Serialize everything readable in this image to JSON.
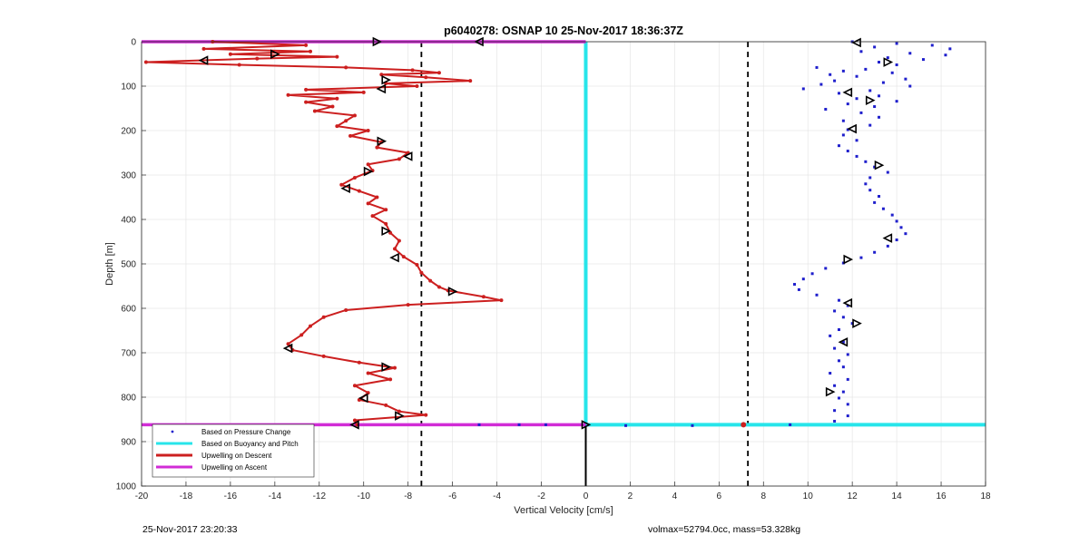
{
  "chart_data": {
    "type": "scatter",
    "title": "p6040278: OSNAP 10 25-Nov-2017 18:36:37Z",
    "xlabel": "Vertical Velocity [cm/s]",
    "ylabel": "Depth [m]",
    "xlim": [
      -20,
      18
    ],
    "ylim": [
      0,
      1000
    ],
    "y_reversed": true,
    "x_ticks": [
      -20,
      -18,
      -16,
      -14,
      -12,
      -10,
      -8,
      -6,
      -4,
      -2,
      0,
      2,
      4,
      6,
      8,
      10,
      12,
      14,
      16,
      18
    ],
    "y_ticks": [
      0,
      100,
      200,
      300,
      400,
      500,
      600,
      700,
      800,
      900,
      1000
    ],
    "grid": true,
    "legend_position": "bottom-left",
    "legend": [
      "Based on Pressure Change",
      "Based on Buoyancy and Pitch",
      "Upwelling on Descent",
      "Upwelling on Ascent"
    ],
    "dashed_reference_x": [
      -7.4,
      7.3
    ],
    "series": [
      {
        "name": "Upwelling on Descent",
        "color": "#cc1f1f",
        "points": [
          [
            -16.8,
            0
          ],
          [
            -12.6,
            8
          ],
          [
            -17.2,
            16
          ],
          [
            -12.4,
            22
          ],
          [
            -16,
            28
          ],
          [
            -11.2,
            34
          ],
          [
            -14.8,
            38
          ],
          [
            -19.8,
            46
          ],
          [
            -15.6,
            52
          ],
          [
            -10.8,
            58
          ],
          [
            -7.8,
            64
          ],
          [
            -6.6,
            70
          ],
          [
            -9.2,
            74
          ],
          [
            -7.2,
            80
          ],
          [
            -5.2,
            88
          ],
          [
            -9,
            94
          ],
          [
            -7.6,
            100
          ],
          [
            -12.6,
            108
          ],
          [
            -10,
            114
          ],
          [
            -13.4,
            120
          ],
          [
            -11.2,
            128
          ],
          [
            -12.6,
            136
          ],
          [
            -11.4,
            146
          ],
          [
            -12.2,
            156
          ],
          [
            -10.4,
            166
          ],
          [
            -10.8,
            178
          ],
          [
            -11.2,
            190
          ],
          [
            -9.8,
            200
          ],
          [
            -10.6,
            212
          ],
          [
            -9.2,
            226
          ],
          [
            -9.4,
            238
          ],
          [
            -8,
            250
          ],
          [
            -8.4,
            264
          ],
          [
            -9.8,
            276
          ],
          [
            -9.6,
            290
          ],
          [
            -10.4,
            306
          ],
          [
            -11,
            322
          ],
          [
            -10.2,
            336
          ],
          [
            -9.4,
            350
          ],
          [
            -9.8,
            364
          ],
          [
            -9,
            378
          ],
          [
            -9.6,
            392
          ],
          [
            -9,
            410
          ],
          [
            -8.8,
            430
          ],
          [
            -8.4,
            448
          ],
          [
            -8.6,
            466
          ],
          [
            -8.2,
            484
          ],
          [
            -7.6,
            502
          ],
          [
            -7.4,
            520
          ],
          [
            -7,
            538
          ],
          [
            -6.6,
            552
          ],
          [
            -6.2,
            560
          ],
          [
            -4.6,
            574
          ],
          [
            -3.8,
            582
          ],
          [
            -8,
            592
          ],
          [
            -10.8,
            604
          ],
          [
            -11.8,
            620
          ],
          [
            -12.4,
            640
          ],
          [
            -12.8,
            660
          ],
          [
            -13.4,
            680
          ],
          [
            -13.2,
            694
          ],
          [
            -11.8,
            708
          ],
          [
            -10.2,
            722
          ],
          [
            -8.6,
            734
          ],
          [
            -9.8,
            746
          ],
          [
            -8.8,
            760
          ],
          [
            -10.4,
            774
          ],
          [
            -9.8,
            790
          ],
          [
            -10.2,
            806
          ],
          [
            -9,
            818
          ],
          [
            -8.4,
            832
          ],
          [
            -7.2,
            840
          ],
          [
            -10.4,
            852
          ],
          [
            -10.3,
            862
          ]
        ]
      },
      {
        "name": "Based on Pressure Change",
        "color": "#1f1fcc",
        "points": [
          [
            12,
            0
          ],
          [
            14,
            4
          ],
          [
            15.6,
            8
          ],
          [
            13,
            12
          ],
          [
            16.4,
            16
          ],
          [
            12.4,
            22
          ],
          [
            14.6,
            26
          ],
          [
            16.2,
            30
          ],
          [
            13.6,
            36
          ],
          [
            15.2,
            40
          ],
          [
            13.2,
            46
          ],
          [
            14,
            52
          ],
          [
            10.4,
            58
          ],
          [
            12.6,
            62
          ],
          [
            11.6,
            66
          ],
          [
            13.8,
            70
          ],
          [
            11,
            74
          ],
          [
            12.2,
            78
          ],
          [
            14.4,
            84
          ],
          [
            11.2,
            88
          ],
          [
            13.4,
            92
          ],
          [
            10.6,
            96
          ],
          [
            14.6,
            100
          ],
          [
            9.8,
            106
          ],
          [
            12.8,
            110
          ],
          [
            11.4,
            116
          ],
          [
            13.2,
            122
          ],
          [
            12.2,
            128
          ],
          [
            14,
            134
          ],
          [
            11.8,
            140
          ],
          [
            13,
            146
          ],
          [
            10.8,
            152
          ],
          [
            12.4,
            160
          ],
          [
            13.2,
            170
          ],
          [
            11.6,
            178
          ],
          [
            12.8,
            188
          ],
          [
            11.8,
            198
          ],
          [
            11.6,
            210
          ],
          [
            12.2,
            222
          ],
          [
            11.4,
            234
          ],
          [
            11.8,
            246
          ],
          [
            12.2,
            258
          ],
          [
            12.6,
            270
          ],
          [
            13,
            282
          ],
          [
            13.6,
            294
          ],
          [
            12.8,
            306
          ],
          [
            12.6,
            320
          ],
          [
            12.8,
            334
          ],
          [
            13.2,
            348
          ],
          [
            13,
            362
          ],
          [
            13.4,
            376
          ],
          [
            13.8,
            390
          ],
          [
            14,
            404
          ],
          [
            14.2,
            418
          ],
          [
            14.4,
            432
          ],
          [
            14,
            446
          ],
          [
            13.6,
            460
          ],
          [
            13,
            474
          ],
          [
            12.4,
            486
          ],
          [
            11.6,
            498
          ],
          [
            10.8,
            510
          ],
          [
            10.2,
            522
          ],
          [
            9.8,
            534
          ],
          [
            9.4,
            546
          ],
          [
            9.6,
            558
          ],
          [
            10.4,
            570
          ],
          [
            11.4,
            582
          ],
          [
            11.8,
            594
          ],
          [
            11.2,
            606
          ],
          [
            11.6,
            620
          ],
          [
            12,
            634
          ],
          [
            11.4,
            648
          ],
          [
            11,
            662
          ],
          [
            11.6,
            676
          ],
          [
            11.2,
            690
          ],
          [
            11.8,
            704
          ],
          [
            11.4,
            718
          ],
          [
            11.6,
            732
          ],
          [
            11,
            746
          ],
          [
            11.8,
            760
          ],
          [
            11.2,
            774
          ],
          [
            11.6,
            788
          ],
          [
            11.4,
            802
          ],
          [
            11.8,
            816
          ],
          [
            11.2,
            830
          ],
          [
            11.8,
            842
          ],
          [
            11.2,
            854
          ]
        ]
      },
      {
        "name": "Based on Buoyancy and Pitch",
        "color": "#27e5ea",
        "points": [
          [
            0,
            0
          ],
          [
            0,
            862
          ],
          [
            18,
            862
          ]
        ]
      },
      {
        "name": "Upwelling on Ascent",
        "color": "#d12cd6",
        "points": [
          [
            -20,
            0
          ],
          [
            0,
            0
          ],
          [
            -20,
            862
          ],
          [
            0,
            862
          ]
        ]
      }
    ],
    "triangle_markers": [
      [
        -9.4,
        0
      ],
      [
        -4.8,
        0
      ],
      [
        -14,
        28
      ],
      [
        -17.2,
        42
      ],
      [
        -9,
        86
      ],
      [
        -9.2,
        106
      ],
      [
        -9.2,
        224
      ],
      [
        -8,
        258
      ],
      [
        -9.8,
        292
      ],
      [
        -10.8,
        330
      ],
      [
        -9,
        426
      ],
      [
        -8.6,
        486
      ],
      [
        -6,
        562
      ],
      [
        -13.4,
        690
      ],
      [
        -9,
        732
      ],
      [
        -10,
        802
      ],
      [
        -8.4,
        842
      ],
      [
        -10.4,
        862
      ],
      [
        0,
        862
      ],
      [
        12.2,
        2
      ],
      [
        13.6,
        46
      ],
      [
        11.8,
        114
      ],
      [
        12.8,
        132
      ],
      [
        12,
        196
      ],
      [
        13.2,
        278
      ],
      [
        13.6,
        442
      ],
      [
        11.8,
        490
      ],
      [
        11.8,
        588
      ],
      [
        12.2,
        634
      ],
      [
        11.6,
        676
      ],
      [
        11,
        788
      ]
    ]
  },
  "footer": {
    "date": "25-Nov-2017 23:20:33",
    "info": "volmax=52794.0cc, mass=53.328kg"
  }
}
